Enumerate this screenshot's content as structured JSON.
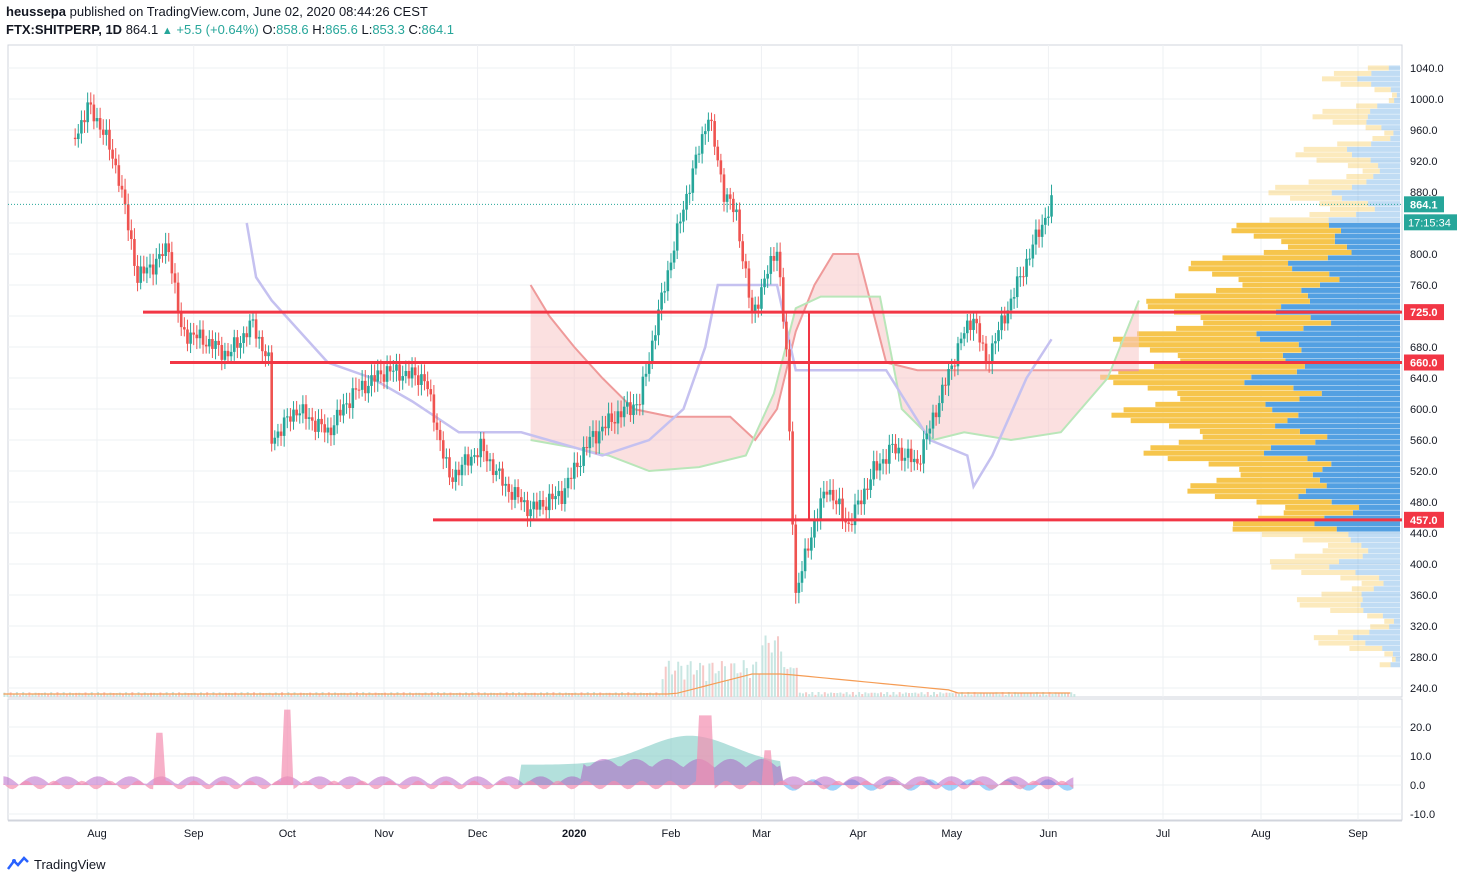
{
  "header": {
    "publisher": "heussepa",
    "published_text": "published on TradingView.com, June 02, 2020 08:44:26 CEST",
    "symbol": "FTX:SHITPERP, 1D",
    "last": "864.1",
    "change": "+5.5 (+0.64%)",
    "change_arrow": "▲",
    "o_label": "O:",
    "o_value": "858.6",
    "h_label": "H:",
    "h_value": "865.6",
    "l_label": "L:",
    "l_value": "853.3",
    "c_label": "C:",
    "c_value": "864.1"
  },
  "footer": {
    "brand": "TradingView"
  },
  "colors": {
    "up": "#26a69a",
    "down": "#ef5350",
    "level": "#f23645",
    "volume_profile_up": "#f5c242",
    "volume_profile_down": "#4a9be0",
    "cloud_bull": "#a5d6a7",
    "cloud_bear": "#f8c6c6",
    "grid": "#eef0f3"
  },
  "chart_data": [
    {
      "type": "candlestick",
      "timeframe": "1D",
      "x_ticks": [
        "Aug",
        "Sep",
        "Oct",
        "Nov",
        "Dec",
        "2020",
        "Feb",
        "Mar",
        "Apr",
        "May",
        "Jun",
        "Jul",
        "Aug",
        "Sep"
      ],
      "y_ticks": [
        "1040.0",
        "1000.0",
        "960.0",
        "920.0",
        "880.0",
        "840.0",
        "800.0",
        "760.0",
        "720.0",
        "680.0",
        "640.0",
        "600.0",
        "560.0",
        "520.0",
        "480.0",
        "440.0",
        "400.0",
        "360.0",
        "320.0",
        "280.0",
        "240.0"
      ],
      "ylim": [
        225,
        1060
      ],
      "approx_close_path": [
        {
          "x": "Jul 25",
          "y": 950
        },
        {
          "x": "Jul 29",
          "y": 990
        },
        {
          "x": "Aug 3",
          "y": 960
        },
        {
          "x": "Aug 8",
          "y": 900
        },
        {
          "x": "Aug 14",
          "y": 770
        },
        {
          "x": "Aug 20",
          "y": 790
        },
        {
          "x": "Aug 24",
          "y": 810
        },
        {
          "x": "Aug 28",
          "y": 700
        },
        {
          "x": "Sep 4",
          "y": 690
        },
        {
          "x": "Sep 12",
          "y": 670
        },
        {
          "x": "Sep 20",
          "y": 710
        },
        {
          "x": "Sep 25",
          "y": 660
        },
        {
          "x": "Sep 26",
          "y": 560
        },
        {
          "x": "Oct 4",
          "y": 600
        },
        {
          "x": "Oct 14",
          "y": 570
        },
        {
          "x": "Oct 22",
          "y": 620
        },
        {
          "x": "Nov 2",
          "y": 650
        },
        {
          "x": "Nov 14",
          "y": 640
        },
        {
          "x": "Nov 22",
          "y": 510
        },
        {
          "x": "Dec 2",
          "y": 550
        },
        {
          "x": "Dec 10",
          "y": 500
        },
        {
          "x": "Dec 18",
          "y": 470
        },
        {
          "x": "Dec 28",
          "y": 490
        },
        {
          "x": "Jan 6",
          "y": 560
        },
        {
          "x": "Jan 14",
          "y": 590
        },
        {
          "x": "Jan 22",
          "y": 610
        },
        {
          "x": "Jan 30",
          "y": 760
        },
        {
          "x": "Feb 5",
          "y": 860
        },
        {
          "x": "Feb 13",
          "y": 980
        },
        {
          "x": "Feb 18",
          "y": 880
        },
        {
          "x": "Feb 22",
          "y": 850
        },
        {
          "x": "Feb 27",
          "y": 720
        },
        {
          "x": "Mar 6",
          "y": 810
        },
        {
          "x": "Mar 9",
          "y": 670
        },
        {
          "x": "Mar 12",
          "y": 360
        },
        {
          "x": "Mar 17",
          "y": 440
        },
        {
          "x": "Mar 22",
          "y": 500
        },
        {
          "x": "Mar 29",
          "y": 450
        },
        {
          "x": "Apr 6",
          "y": 520
        },
        {
          "x": "Apr 12",
          "y": 550
        },
        {
          "x": "Apr 20",
          "y": 530
        },
        {
          "x": "Apr 26",
          "y": 600
        },
        {
          "x": "May 4",
          "y": 690
        },
        {
          "x": "May 8",
          "y": 720
        },
        {
          "x": "May 12",
          "y": 660
        },
        {
          "x": "May 18",
          "y": 720
        },
        {
          "x": "May 25",
          "y": 790
        },
        {
          "x": "May 29",
          "y": 830
        },
        {
          "x": "Jun 2",
          "y": 864.1
        }
      ],
      "horizontal_levels": [
        {
          "label": "725.0",
          "value": 725.0
        },
        {
          "label": "660.0",
          "value": 660.0
        },
        {
          "label": "457.0",
          "value": 457.0
        }
      ],
      "last_price": {
        "label": "864.1",
        "value": 864.1,
        "countdown": "17:15:34"
      },
      "overlays": [
        "ichimoku cloud",
        "volume profile",
        "volume"
      ]
    },
    {
      "type": "area",
      "role": "oscillator",
      "y_ticks": [
        "20.0",
        "10.0",
        "0.0",
        "-10.0"
      ],
      "ylim": [
        -11,
        27
      ],
      "approx_peaks": [
        {
          "x": "Aug 15",
          "y": 18
        },
        {
          "x": "Sep 25",
          "y": 26
        },
        {
          "x": "Feb 13",
          "y": 24
        },
        {
          "x": "Feb 20",
          "y": 15
        },
        {
          "x": "Mar 10",
          "y": 12
        }
      ]
    }
  ]
}
